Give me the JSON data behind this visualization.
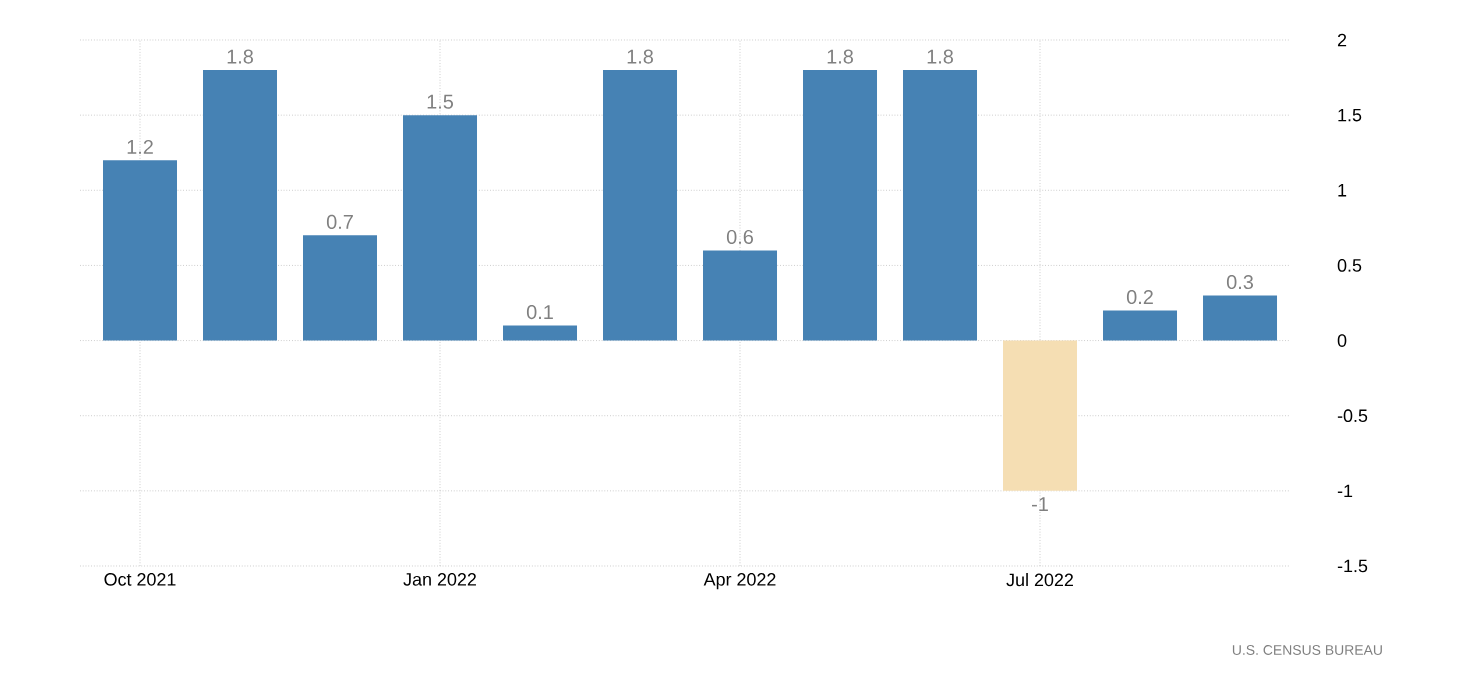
{
  "chart_data": {
    "type": "bar",
    "categories": [
      "Oct 2021",
      null,
      null,
      "Jan 2022",
      null,
      null,
      "Apr 2022",
      null,
      null,
      "Jul 2022",
      null,
      null
    ],
    "values": [
      1.2,
      1.8,
      0.7,
      1.5,
      0.1,
      1.8,
      0.6,
      1.8,
      1.8,
      -1,
      0.2,
      0.3
    ],
    "colors": [
      "#4682b4",
      "#4682b4",
      "#4682b4",
      "#4682b4",
      "#4682b4",
      "#4682b4",
      "#4682b4",
      "#4682b4",
      "#4682b4",
      "#f5deb3",
      "#4682b4",
      "#4682b4"
    ],
    "ylim": [
      -1.5,
      2
    ],
    "yticks": [
      -1.5,
      -1,
      -0.5,
      0,
      0.5,
      1,
      1.5,
      2
    ],
    "grid": true,
    "data_labels": true,
    "annotations": [
      "U.S.  CENSUS BUREAU"
    ]
  }
}
